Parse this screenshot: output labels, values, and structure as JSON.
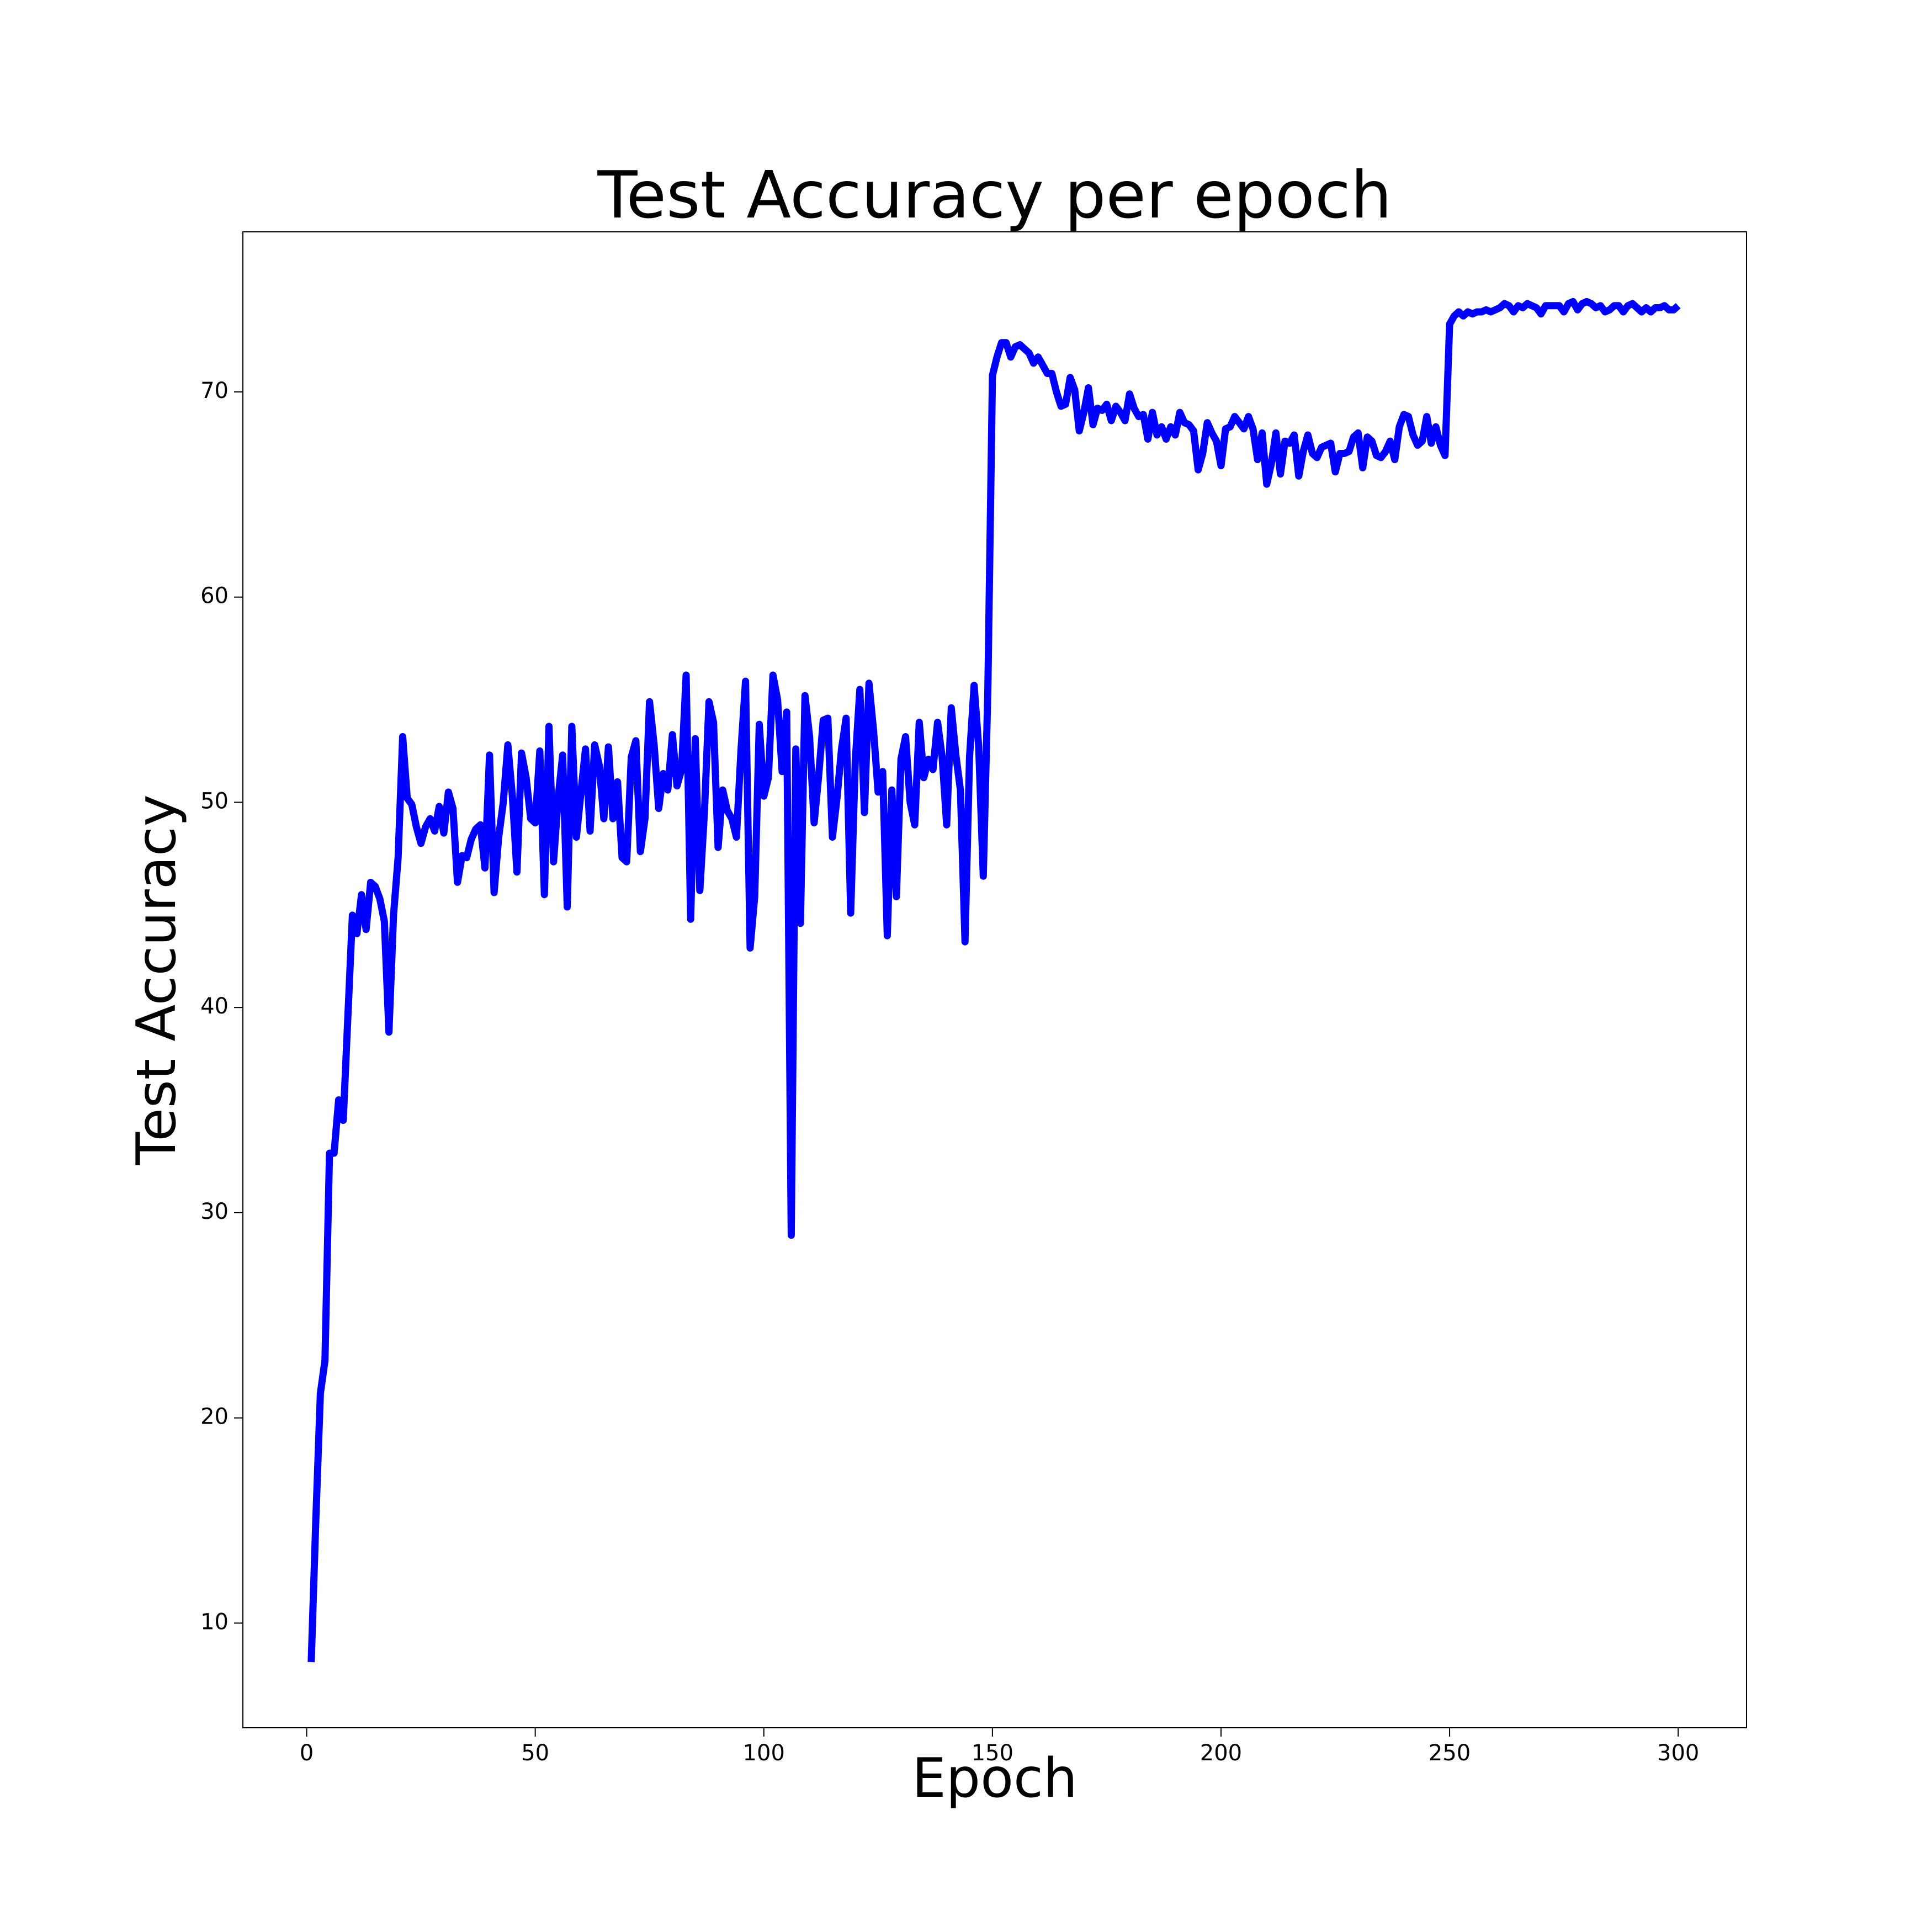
{
  "chart_data": {
    "type": "line",
    "title": "Test Accuracy per epoch",
    "xlabel": "Epoch",
    "ylabel": "Test Accuracy",
    "color": "#0000ff",
    "x": [
      1,
      2,
      3,
      4,
      5,
      6,
      7,
      8,
      9,
      10,
      11,
      12,
      13,
      14,
      15,
      16,
      17,
      18,
      19,
      20,
      21,
      22,
      23,
      24,
      25,
      26,
      27,
      28,
      29,
      30,
      31,
      32,
      33,
      34,
      35,
      36,
      37,
      38,
      39,
      40,
      41,
      42,
      43,
      44,
      45,
      46,
      47,
      48,
      49,
      50,
      51,
      52,
      53,
      54,
      55,
      56,
      57,
      58,
      59,
      60,
      61,
      62,
      63,
      64,
      65,
      66,
      67,
      68,
      69,
      70,
      71,
      72,
      73,
      74,
      75,
      76,
      77,
      78,
      79,
      80,
      81,
      82,
      83,
      84,
      85,
      86,
      87,
      88,
      89,
      90,
      91,
      92,
      93,
      94,
      95,
      96,
      97,
      98,
      99,
      100,
      101,
      102,
      103,
      104,
      105,
      106,
      107,
      108,
      109,
      110,
      111,
      112,
      113,
      114,
      115,
      116,
      117,
      118,
      119,
      120,
      121,
      122,
      123,
      124,
      125,
      126,
      127,
      128,
      129,
      130,
      131,
      132,
      133,
      134,
      135,
      136,
      137,
      138,
      139,
      140,
      141,
      142,
      143,
      144,
      145,
      146,
      147,
      148,
      149,
      150,
      151,
      152,
      153,
      154,
      155,
      156,
      157,
      158,
      159,
      160,
      161,
      162,
      163,
      164,
      165,
      166,
      167,
      168,
      169,
      170,
      171,
      172,
      173,
      174,
      175,
      176,
      177,
      178,
      179,
      180,
      181,
      182,
      183,
      184,
      185,
      186,
      187,
      188,
      189,
      190,
      191,
      192,
      193,
      194,
      195,
      196,
      197,
      198,
      199,
      200,
      201,
      202,
      203,
      204,
      205,
      206,
      207,
      208,
      209,
      210,
      211,
      212,
      213,
      214,
      215,
      216,
      217,
      218,
      219,
      220,
      221,
      222,
      223,
      224,
      225,
      226,
      227,
      228,
      229,
      230,
      231,
      232,
      233,
      234,
      235,
      236,
      237,
      238,
      239,
      240,
      241,
      242,
      243,
      244,
      245,
      246,
      247,
      248,
      249,
      250,
      251,
      252,
      253,
      254,
      255,
      256,
      257,
      258,
      259,
      260,
      261,
      262,
      263,
      264,
      265,
      266,
      267,
      268,
      269,
      270,
      271,
      272,
      273,
      274,
      275,
      276,
      277,
      278,
      279,
      280,
      281,
      282,
      283,
      284,
      285,
      286,
      287,
      288,
      289,
      290,
      291,
      292,
      293,
      294,
      295,
      296,
      297,
      298,
      299,
      300
    ],
    "values": [
      8.1,
      15,
      21.2,
      22.8,
      32.9,
      32.9,
      35.5,
      34.5,
      39.5,
      44.5,
      43.6,
      45.5,
      43.8,
      46.1,
      45.9,
      45.3,
      44.2,
      38.8,
      44.5,
      47.3,
      53.2,
      50.2,
      49.9,
      48.8,
      48.0,
      48.8,
      49.2,
      48.6,
      49.8,
      48.5,
      50.5,
      49.7,
      46.1,
      47.4,
      47.3,
      48.2,
      48.7,
      48.9,
      46.8,
      52.3,
      45.6,
      48.3,
      50.0,
      52.8,
      50.3,
      46.6,
      52.4,
      51.2,
      49.2,
      49.0,
      52.5,
      45.5,
      53.7,
      47.1,
      50.2,
      52.3,
      44.9,
      53.7,
      48.3,
      50.5,
      52.6,
      48.6,
      52.8,
      51.8,
      49.2,
      52.7,
      49.2,
      51.0,
      47.3,
      47.1,
      52.2,
      53.0,
      47.6,
      49.2,
      54.9,
      52.8,
      49.7,
      51.4,
      50.6,
      53.3,
      50.8,
      51.6,
      56.2,
      44.3,
      53.1,
      45.7,
      49.5,
      54.9,
      53.9,
      47.8,
      50.6,
      49.6,
      49.2,
      48.3,
      52.5,
      55.9,
      42.9,
      45.4,
      53.8,
      50.3,
      51.2,
      56.2,
      55.0,
      51.5,
      54.4,
      28.9,
      52.6,
      44.1,
      55.2,
      53.2,
      49.0,
      51.3,
      54.0,
      54.1,
      48.3,
      50.2,
      52.6,
      54.1,
      44.6,
      52.0,
      55.5,
      49.5,
      55.8,
      53.5,
      50.5,
      51.5,
      43.5,
      50.6,
      45.4,
      52.1,
      53.2,
      50.0,
      48.9,
      53.9,
      51.2,
      52.1,
      51.6,
      53.9,
      52.2,
      48.9,
      54.6,
      52.3,
      50.6,
      43.2,
      52.2,
      55.7,
      52.7,
      46.4,
      55.5,
      70.8,
      71.7,
      72.4,
      72.4,
      71.7,
      72.2,
      72.3,
      72.1,
      71.9,
      71.4,
      71.7,
      71.3,
      70.9,
      70.9,
      70.0,
      69.3,
      69.4,
      70.7,
      70.1,
      68.1,
      69.0,
      70.2,
      68.4,
      69.2,
      69.1,
      69.4,
      68.6,
      69.3,
      69.0,
      68.6,
      69.9,
      69.2,
      68.8,
      68.9,
      67.7,
      69.0,
      67.9,
      68.3,
      67.7,
      68.3,
      67.9,
      69.0,
      68.5,
      68.4,
      68.1,
      66.2,
      67.0,
      68.5,
      68.0,
      67.6,
      66.4,
      68.2,
      68.3,
      68.8,
      68.5,
      68.2,
      68.8,
      68.2,
      66.7,
      68.0,
      65.5,
      66.5,
      68.0,
      66.0,
      67.6,
      67.5,
      67.9,
      65.9,
      67.1,
      67.9,
      67.0,
      66.8,
      67.3,
      67.4,
      67.5,
      66.1,
      67.0,
      67.0,
      67.1,
      67.8,
      68.0,
      66.3,
      67.8,
      67.6,
      66.9,
      66.8,
      67.1,
      67.6,
      66.7,
      68.3,
      68.9,
      68.8,
      67.9,
      67.4,
      67.6,
      68.8,
      67.5,
      68.3,
      67.4,
      66.9,
      73.3,
      73.7,
      73.9,
      73.7,
      73.9,
      73.8,
      73.9,
      73.9,
      74.0,
      73.9,
      74.0,
      74.1,
      74.3,
      74.2,
      73.9,
      74.2,
      74.1,
      74.3,
      74.2,
      74.1,
      73.8,
      74.2,
      74.2,
      74.2,
      74.2,
      73.9,
      74.3,
      74.4,
      74.0,
      74.3,
      74.4,
      74.3,
      74.1,
      74.2,
      73.9,
      74.0,
      74.2,
      74.2,
      73.9,
      74.2,
      74.3,
      74.1,
      73.9,
      74.1,
      73.9,
      74.1,
      74.1,
      74.2,
      74.0,
      74.0,
      74.2
    ],
    "xlim": [
      -13.95,
      314.95
    ],
    "xticks": [
      0,
      50,
      100,
      150,
      200,
      250,
      300
    ],
    "ylim": [
      4.9,
      77.8
    ],
    "yticks": [
      10,
      20,
      30,
      40,
      50,
      60,
      70
    ]
  }
}
